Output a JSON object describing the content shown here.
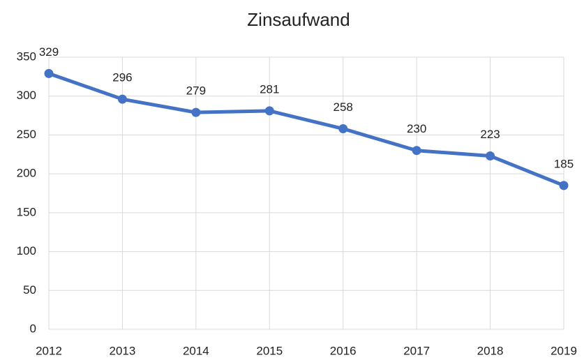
{
  "chart_data": {
    "type": "line",
    "title": "Zinsaufwand",
    "x": [
      2012,
      2013,
      2014,
      2015,
      2016,
      2017,
      2018,
      2019
    ],
    "series": [
      {
        "name": "Zinsaufwand",
        "color": "#4472c4",
        "values": [
          329,
          296,
          279,
          281,
          258,
          230,
          223,
          185
        ]
      }
    ],
    "xlim": [
      2012,
      2019
    ],
    "xticks": [
      2012,
      2013,
      2014,
      2015,
      2016,
      2017,
      2018,
      2019
    ],
    "ylim": [
      0,
      350
    ],
    "yticks": [
      0,
      50,
      100,
      150,
      200,
      250,
      300,
      350
    ],
    "grid": true,
    "data_labels": true
  }
}
